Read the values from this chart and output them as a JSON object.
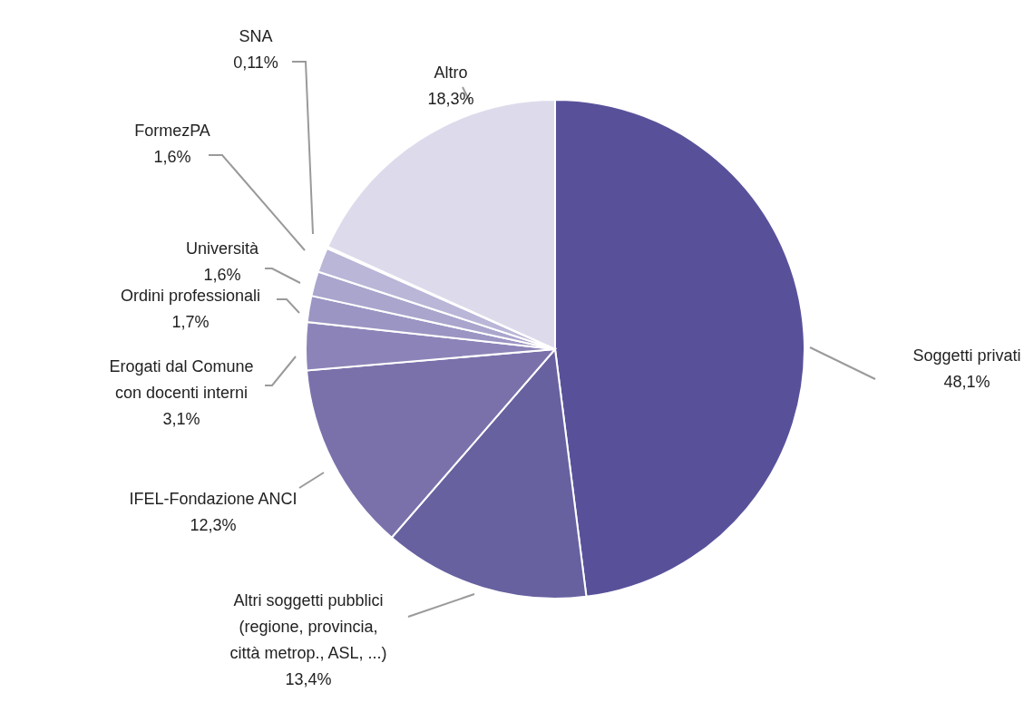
{
  "chart_data": {
    "type": "pie",
    "categories": [
      "Soggetti privati",
      "Altri soggetti pubblici\n(regione, provincia,\ncittà metrop., ASL, ...)",
      "IFEL-Fondazione ANCI",
      "Erogati dal Comune\ncon docenti interni",
      "Ordini professionali",
      "Università",
      "FormezPA",
      "SNA",
      "Altro"
    ],
    "values": [
      48.1,
      13.4,
      12.3,
      3.1,
      1.7,
      1.6,
      1.6,
      0.11,
      18.3
    ],
    "value_labels": [
      "48,1%",
      "13,4%",
      "12,3%",
      "3,1%",
      "1,7%",
      "1,6%",
      "1,6%",
      "0,11%",
      "18,3%"
    ],
    "colors": [
      "#58519a",
      "#6761a0",
      "#7a71ab",
      "#8c84b8",
      "#9b95c3",
      "#aaa5cd",
      "#bab6d8",
      "#c9c6e0",
      "#dddbeb"
    ],
    "legend": false
  }
}
